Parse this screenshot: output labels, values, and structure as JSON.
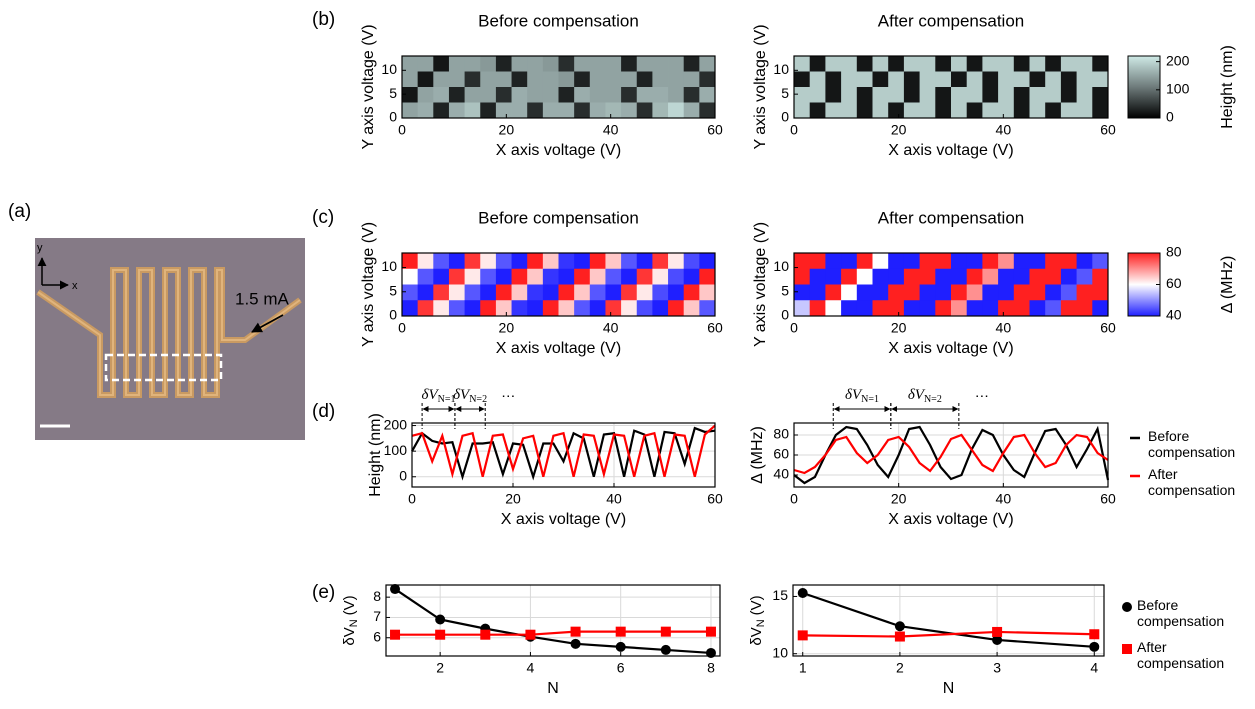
{
  "panel_labels": [
    "(a)",
    "(b)",
    "(c)",
    "(d)",
    "(e)"
  ],
  "panel_a": {
    "current_label": "1.5 mA",
    "axis_y": "y",
    "axis_x": "x"
  },
  "chart_data": [
    {
      "type": "heatmap",
      "title": "Before compensation",
      "xlabel": "X axis voltage (V)",
      "ylabel": "Y axis voltage (V)",
      "xlim": [
        0,
        60
      ],
      "ylim": [
        0,
        13
      ],
      "xticks": [
        0,
        20,
        40,
        60
      ],
      "yticks": [
        0,
        5,
        10
      ],
      "zlim": [
        0,
        220
      ],
      "colors": [
        "#000000",
        "#6e7b7b",
        "#cfeae6"
      ],
      "z": [
        [
          150,
          150,
          20,
          150,
          150,
          140,
          30,
          150,
          150,
          140,
          40,
          150,
          150,
          150,
          30,
          150,
          150,
          150,
          30,
          150
        ],
        [
          150,
          20,
          150,
          150,
          40,
          150,
          150,
          30,
          150,
          150,
          140,
          30,
          150,
          150,
          150,
          30,
          150,
          150,
          150,
          40
        ],
        [
          20,
          150,
          160,
          30,
          150,
          150,
          40,
          160,
          150,
          150,
          30,
          160,
          150,
          150,
          40,
          160,
          160,
          150,
          40,
          160
        ],
        [
          150,
          160,
          30,
          160,
          180,
          30,
          160,
          160,
          40,
          160,
          160,
          40,
          160,
          170,
          160,
          40,
          170,
          200,
          160,
          40
        ]
      ]
    },
    {
      "type": "heatmap",
      "title": "After compensation",
      "xlabel": "X axis voltage (V)",
      "ylabel": "Y axis voltage (V)",
      "xlim": [
        0,
        60
      ],
      "ylim": [
        0,
        13
      ],
      "xticks": [
        0,
        20,
        40,
        60
      ],
      "yticks": [
        0,
        5,
        10
      ],
      "zlim": [
        0,
        220
      ],
      "colors": [
        "#000000",
        "#6e7b7b",
        "#cfeae6"
      ],
      "z": [
        [
          190,
          20,
          190,
          190,
          20,
          190,
          20,
          190,
          190,
          20,
          190,
          20,
          190,
          190,
          20,
          190,
          20,
          190,
          190,
          20
        ],
        [
          20,
          190,
          20,
          190,
          190,
          20,
          190,
          20,
          190,
          190,
          20,
          190,
          20,
          190,
          190,
          20,
          190,
          20,
          190,
          190
        ],
        [
          190,
          190,
          20,
          190,
          20,
          190,
          190,
          20,
          190,
          20,
          190,
          190,
          20,
          190,
          20,
          190,
          190,
          20,
          190,
          20
        ],
        [
          190,
          20,
          190,
          190,
          20,
          190,
          20,
          190,
          190,
          20,
          190,
          20,
          190,
          190,
          20,
          190,
          20,
          190,
          190,
          20
        ]
      ],
      "colorbar": {
        "label": "Height (nm)",
        "ticks": [
          0,
          100,
          200
        ]
      }
    },
    {
      "type": "heatmap",
      "title": "Before compensation",
      "xlabel": "X axis voltage (V)",
      "ylabel": "Y axis voltage (V)",
      "xlim": [
        0,
        60
      ],
      "ylim": [
        0,
        13
      ],
      "xticks": [
        0,
        20,
        40,
        60
      ],
      "yticks": [
        0,
        5,
        10
      ],
      "zlim": [
        40,
        80
      ],
      "colors": [
        "#1f1fff",
        "#ffffff",
        "#ff2020"
      ],
      "z": [
        [
          80,
          62,
          45,
          40,
          78,
          62,
          45,
          40,
          80,
          65,
          42,
          40,
          80,
          65,
          45,
          40,
          78,
          62,
          44,
          40
        ],
        [
          60,
          45,
          40,
          78,
          62,
          45,
          40,
          80,
          65,
          42,
          40,
          80,
          65,
          45,
          40,
          78,
          62,
          44,
          40,
          80
        ],
        [
          45,
          40,
          78,
          62,
          45,
          40,
          80,
          65,
          42,
          40,
          80,
          65,
          45,
          40,
          78,
          62,
          44,
          40,
          80,
          65
        ],
        [
          40,
          78,
          62,
          45,
          40,
          80,
          65,
          42,
          40,
          80,
          65,
          45,
          40,
          78,
          62,
          44,
          40,
          80,
          65,
          45
        ]
      ]
    },
    {
      "type": "heatmap",
      "title": "After compensation",
      "xlabel": "X axis voltage (V)",
      "ylabel": "Y axis voltage (V)",
      "xlim": [
        0,
        60
      ],
      "ylim": [
        0,
        13
      ],
      "xticks": [
        0,
        20,
        40,
        60
      ],
      "yticks": [
        0,
        5,
        10
      ],
      "zlim": [
        40,
        80
      ],
      "colors": [
        "#1f1fff",
        "#ffffff",
        "#ff2020"
      ],
      "z": [
        [
          80,
          80,
          40,
          40,
          80,
          60,
          40,
          40,
          80,
          80,
          40,
          40,
          80,
          70,
          40,
          40,
          80,
          80,
          40,
          45
        ],
        [
          80,
          40,
          40,
          80,
          60,
          40,
          40,
          80,
          80,
          40,
          40,
          80,
          70,
          40,
          40,
          80,
          80,
          40,
          45,
          80
        ],
        [
          40,
          40,
          80,
          60,
          40,
          40,
          80,
          80,
          40,
          40,
          80,
          70,
          40,
          40,
          80,
          80,
          40,
          45,
          80,
          80
        ],
        [
          55,
          80,
          60,
          40,
          40,
          80,
          80,
          40,
          40,
          80,
          70,
          40,
          40,
          80,
          80,
          40,
          45,
          80,
          80,
          40
        ]
      ],
      "colorbar": {
        "label": "Δ (MHz)",
        "ticks": [
          40,
          60,
          80
        ]
      }
    },
    {
      "type": "line",
      "xlabel": "X axis voltage (V)",
      "ylabel": "Height (nm)",
      "grid": true,
      "xlim": [
        0,
        60
      ],
      "ylim": [
        -40,
        210
      ],
      "xticks": [
        0,
        20,
        40,
        60
      ],
      "yticks": [
        0,
        100,
        200
      ],
      "x": [
        0,
        2,
        4,
        6,
        8,
        10,
        12,
        14,
        16,
        18,
        20,
        22,
        24,
        26,
        28,
        30,
        32,
        34,
        36,
        38,
        40,
        42,
        44,
        46,
        48,
        50,
        52,
        54,
        56,
        58,
        60
      ],
      "series": [
        {
          "name": "Before compensation",
          "color": "#000000",
          "values": [
            100,
            170,
            140,
            130,
            135,
            0,
            130,
            130,
            135,
            10,
            130,
            125,
            0,
            130,
            130,
            60,
            170,
            150,
            0,
            165,
            170,
            0,
            180,
            165,
            0,
            175,
            170,
            50,
            190,
            175,
            180
          ]
        },
        {
          "name": "After compensation",
          "color": "#ff0000",
          "values": [
            160,
            170,
            60,
            160,
            10,
            160,
            170,
            0,
            160,
            165,
            30,
            150,
            160,
            0,
            160,
            170,
            0,
            165,
            160,
            10,
            165,
            160,
            0,
            160,
            170,
            0,
            165,
            160,
            0,
            165,
            200
          ]
        }
      ],
      "intervals": [
        {
          "label": "δV",
          "sub": "N=1",
          "x": [
            2,
            8.5
          ]
        },
        {
          "label": "δV",
          "sub": "N=2",
          "x": [
            8.5,
            14.5
          ]
        }
      ],
      "ellipsis": "⋯"
    },
    {
      "type": "line",
      "xlabel": "X axis voltage (V)",
      "ylabel": "Δ (MHz)",
      "grid": true,
      "xlim": [
        0,
        60
      ],
      "ylim": [
        28,
        92
      ],
      "xticks": [
        0,
        20,
        40,
        60
      ],
      "yticks": [
        40,
        60,
        80
      ],
      "x": [
        0,
        2,
        4,
        6,
        8,
        10,
        12,
        14,
        16,
        18,
        20,
        22,
        24,
        26,
        28,
        30,
        32,
        34,
        36,
        38,
        40,
        42,
        44,
        46,
        48,
        50,
        52,
        54,
        56,
        58,
        60
      ],
      "series": [
        {
          "name": "Before compensation",
          "color": "#000000",
          "values": [
            40,
            32,
            38,
            60,
            80,
            88,
            86,
            70,
            50,
            38,
            60,
            86,
            88,
            70,
            48,
            36,
            40,
            66,
            85,
            80,
            60,
            45,
            38,
            62,
            84,
            86,
            70,
            48,
            66,
            86,
            35
          ]
        },
        {
          "name": "After compensation",
          "color": "#ff0000",
          "values": [
            45,
            42,
            48,
            60,
            75,
            78,
            62,
            52,
            60,
            75,
            78,
            68,
            52,
            44,
            58,
            76,
            80,
            65,
            50,
            44,
            62,
            78,
            80,
            62,
            48,
            52,
            70,
            80,
            78,
            62,
            55
          ]
        }
      ],
      "intervals": [
        {
          "label": "δV",
          "sub": "N=1",
          "x": [
            7.5,
            18.5
          ]
        },
        {
          "label": "δV",
          "sub": "N=2",
          "x": [
            18.5,
            31.5
          ]
        }
      ],
      "ellipsis": "⋯",
      "legend": "right"
    },
    {
      "type": "line",
      "xlabel": "N",
      "ylabel": "δV",
      "ylabel_sub": "N",
      "ylabel_unit": "(V)",
      "grid": true,
      "xlim": [
        0.8,
        8.2
      ],
      "ylim": [
        5.1,
        8.6
      ],
      "xticks": [
        2,
        4,
        6,
        8
      ],
      "yticks": [
        6,
        7,
        8
      ],
      "x": [
        1,
        2,
        3,
        4,
        5,
        6,
        7,
        8
      ],
      "series": [
        {
          "name": "Before compensation",
          "color": "#000000",
          "marker": "circle",
          "values": [
            8.4,
            6.9,
            6.45,
            6.05,
            5.7,
            5.55,
            5.4,
            5.25
          ]
        },
        {
          "name": "After compensation",
          "color": "#ff0000",
          "marker": "square",
          "values": [
            6.15,
            6.15,
            6.15,
            6.15,
            6.3,
            6.3,
            6.3,
            6.3
          ]
        }
      ]
    },
    {
      "type": "line",
      "xlabel": "N",
      "ylabel": "δV",
      "ylabel_sub": "N",
      "ylabel_unit": "(V)",
      "grid": true,
      "xlim": [
        0.9,
        4.1
      ],
      "ylim": [
        9.8,
        16
      ],
      "xticks": [
        1,
        2,
        3,
        4
      ],
      "yticks": [
        10,
        15
      ],
      "x": [
        1,
        2,
        3,
        4
      ],
      "series": [
        {
          "name": "Before compensation",
          "color": "#000000",
          "marker": "circle",
          "values": [
            15.3,
            12.4,
            11.2,
            10.6
          ]
        },
        {
          "name": "After compensation",
          "color": "#ff0000",
          "marker": "square",
          "values": [
            11.6,
            11.5,
            11.9,
            11.7
          ]
        }
      ],
      "legend": "right"
    }
  ]
}
